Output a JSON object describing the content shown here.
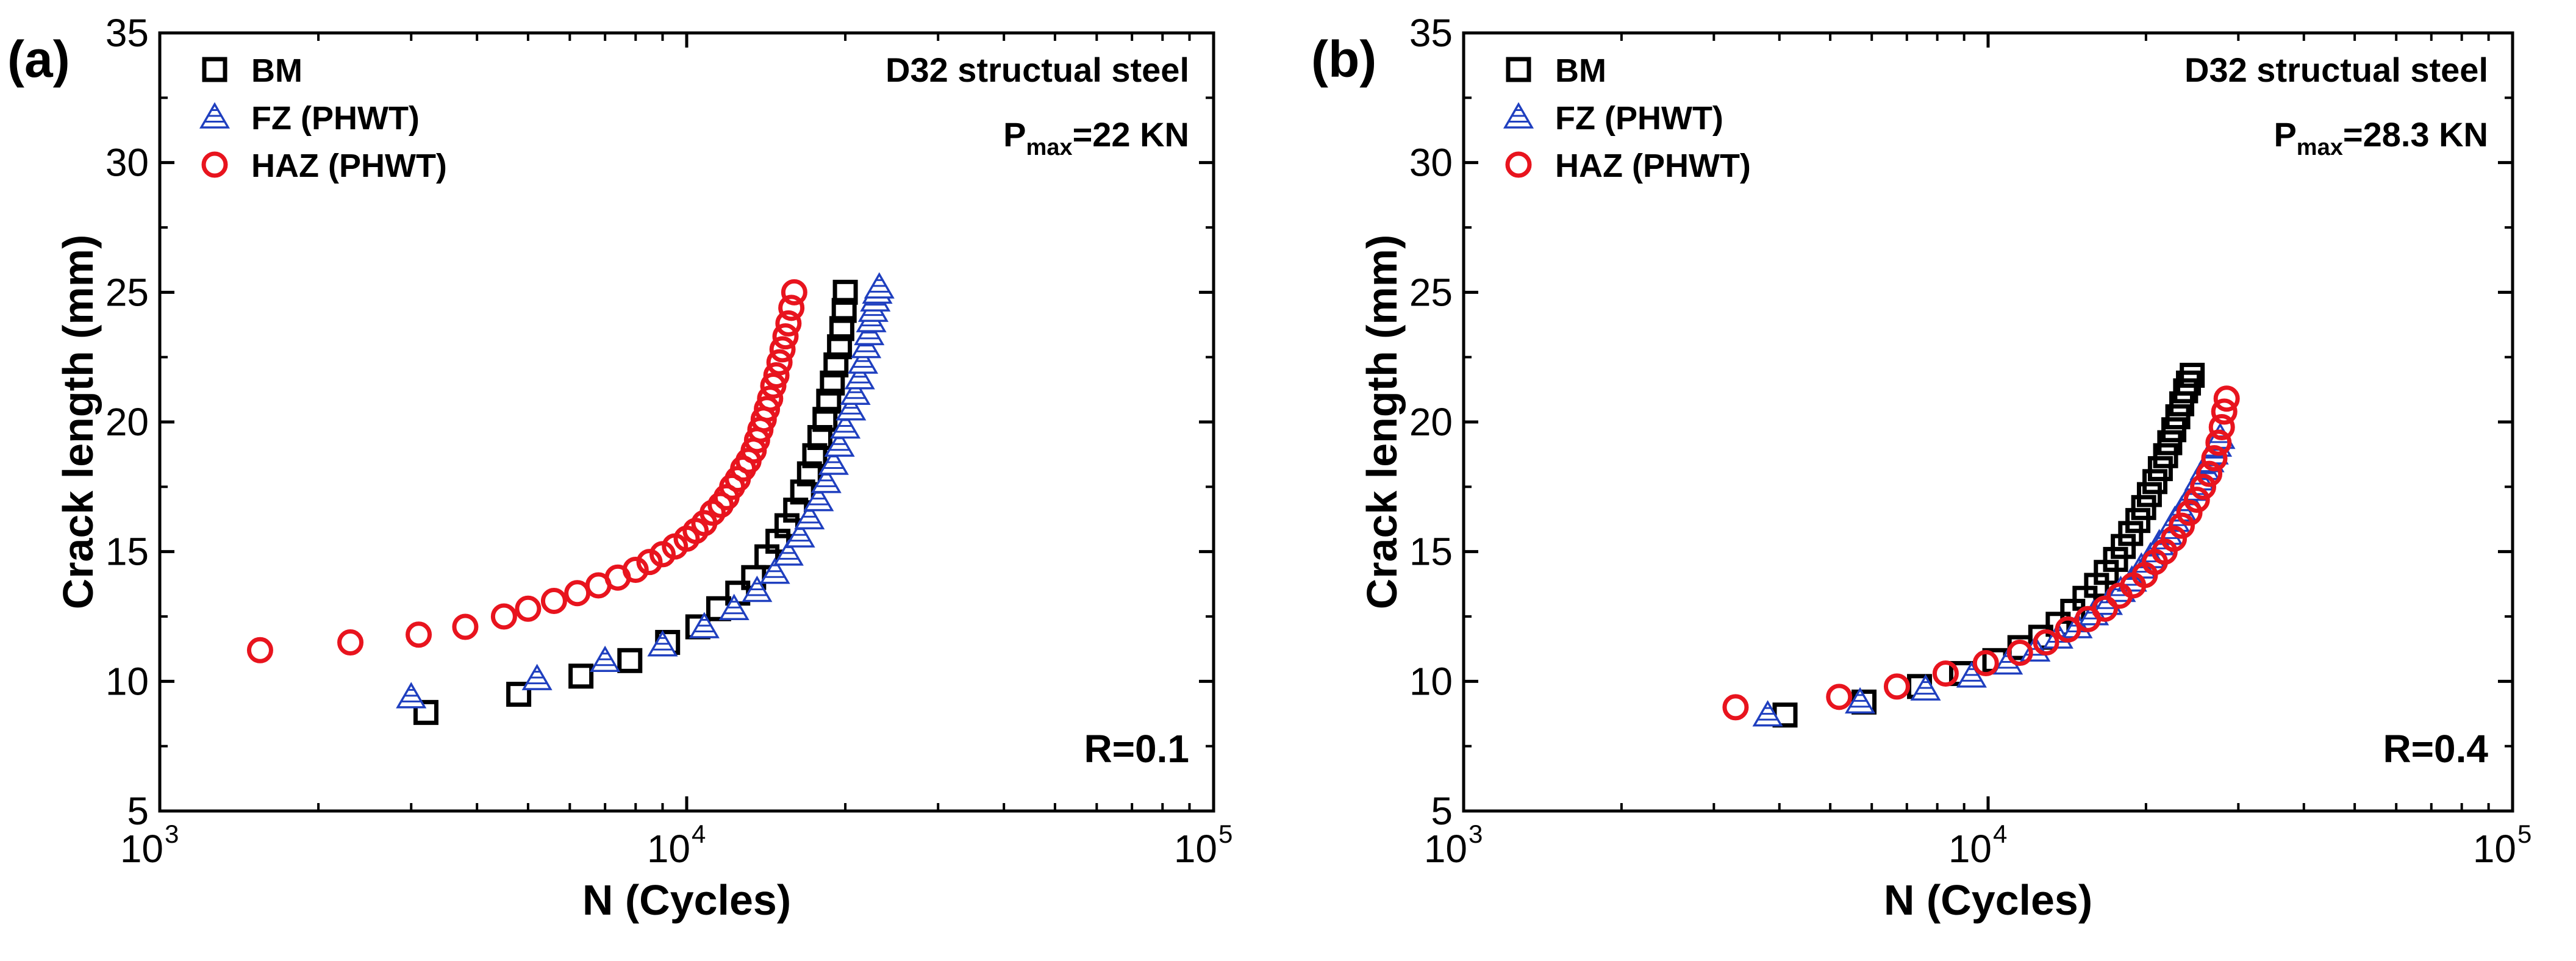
{
  "chart_data": [
    {
      "type": "scatter",
      "panel_label": "(a)",
      "xlabel": "N (Cycles)",
      "ylabel": "Crack length (mm)",
      "xscale": "log",
      "xlim": [
        1000,
        100000
      ],
      "ylim": [
        5,
        35
      ],
      "x_ticks": [
        {
          "base": "10",
          "exp": "3"
        },
        {
          "base": "10",
          "exp": "4"
        },
        {
          "base": "10",
          "exp": "5"
        }
      ],
      "y_ticks": [
        "5",
        "10",
        "15",
        "20",
        "25",
        "30",
        "35"
      ],
      "annotations": {
        "material": "D32 structual steel",
        "pmax_prefix": "P",
        "pmax_sub": "max",
        "pmax_value": "=22 KN",
        "ratio": "R=0.1"
      },
      "legend_position": "top-left",
      "series": [
        {
          "name": "BM",
          "marker": "square",
          "color": "#000000",
          "x": [
            3200,
            4800,
            6300,
            7800,
            9200,
            10500,
            11500,
            12500,
            13400,
            14200,
            14900,
            15500,
            16100,
            16600,
            17100,
            17500,
            17900,
            18300,
            18600,
            18900,
            19200,
            19500,
            19700,
            19900,
            20000
          ],
          "y": [
            8.8,
            9.5,
            10.2,
            10.8,
            11.5,
            12.1,
            12.8,
            13.4,
            14.0,
            14.8,
            15.4,
            16.0,
            16.6,
            17.3,
            18.0,
            18.7,
            19.4,
            20.1,
            20.8,
            21.5,
            22.2,
            22.9,
            23.6,
            24.3,
            25.0
          ]
        },
        {
          "name": "FZ (PHWT)",
          "marker": "triangle",
          "color": "#1f3fbf",
          "x": [
            3000,
            5200,
            7000,
            9000,
            10800,
            12300,
            13600,
            14700,
            15600,
            16400,
            17100,
            17800,
            18400,
            19000,
            19500,
            20000,
            20500,
            20900,
            21300,
            21600,
            21900,
            22200,
            22400,
            22600,
            22800,
            23000,
            23200
          ],
          "y": [
            9.4,
            10.1,
            10.8,
            11.4,
            12.1,
            12.8,
            13.5,
            14.2,
            14.9,
            15.6,
            16.3,
            17.0,
            17.7,
            18.4,
            19.1,
            19.8,
            20.5,
            21.1,
            21.7,
            22.3,
            22.9,
            23.4,
            23.9,
            24.3,
            24.7,
            25.0,
            25.2
          ]
        },
        {
          "name": "HAZ (PHWT)",
          "marker": "circle",
          "color": "#e8141e",
          "x": [
            1550,
            2300,
            3100,
            3800,
            4500,
            5000,
            5600,
            6200,
            6800,
            7400,
            8000,
            8500,
            9000,
            9500,
            10000,
            10400,
            10800,
            11200,
            11600,
            11900,
            12200,
            12500,
            12800,
            13100,
            13400,
            13600,
            13800,
            14000,
            14200,
            14400,
            14600,
            14800,
            15000,
            15200,
            15400,
            15600,
            15800,
            16000
          ],
          "y": [
            11.2,
            11.5,
            11.8,
            12.1,
            12.5,
            12.8,
            13.1,
            13.4,
            13.7,
            14.0,
            14.3,
            14.6,
            14.9,
            15.2,
            15.5,
            15.8,
            16.1,
            16.5,
            16.8,
            17.1,
            17.5,
            17.8,
            18.2,
            18.5,
            18.9,
            19.3,
            19.7,
            20.1,
            20.5,
            20.9,
            21.4,
            21.8,
            22.3,
            22.8,
            23.3,
            23.8,
            24.4,
            25.0
          ]
        }
      ]
    },
    {
      "type": "scatter",
      "panel_label": "(b)",
      "xlabel": "N (Cycles)",
      "ylabel": "Crack length (mm)",
      "xscale": "log",
      "xlim": [
        1000,
        100000
      ],
      "ylim": [
        5,
        35
      ],
      "x_ticks": [
        {
          "base": "10",
          "exp": "3"
        },
        {
          "base": "10",
          "exp": "4"
        },
        {
          "base": "10",
          "exp": "5"
        }
      ],
      "y_ticks": [
        "5",
        "10",
        "15",
        "20",
        "25",
        "30",
        "35"
      ],
      "annotations": {
        "material": "D32 structual steel",
        "pmax_prefix": "P",
        "pmax_sub": "max",
        "pmax_value": "=28.3 KN",
        "ratio": "R=0.4"
      },
      "legend_position": "top-left",
      "series": [
        {
          "name": "BM",
          "marker": "square",
          "color": "#000000",
          "x": [
            4100,
            5800,
            7400,
            8900,
            10300,
            11500,
            12600,
            13600,
            14500,
            15300,
            16100,
            16800,
            17500,
            18100,
            18700,
            19300,
            19800,
            20300,
            20800,
            21300,
            21800,
            22200,
            22600,
            23000,
            23400,
            23800,
            24100,
            24500
          ],
          "y": [
            8.7,
            9.2,
            9.8,
            10.3,
            10.8,
            11.3,
            11.7,
            12.2,
            12.7,
            13.2,
            13.7,
            14.2,
            14.7,
            15.2,
            15.7,
            16.2,
            16.7,
            17.2,
            17.7,
            18.2,
            18.7,
            19.2,
            19.7,
            20.2,
            20.7,
            21.2,
            21.5,
            21.8
          ]
        },
        {
          "name": "FZ (PHWT)",
          "marker": "triangle",
          "color": "#1f3fbf",
          "x": [
            3800,
            5700,
            7600,
            9300,
            10900,
            12300,
            13600,
            14800,
            15900,
            16900,
            17900,
            18800,
            19600,
            20400,
            21200,
            22000,
            22700,
            23400,
            24100,
            24700,
            25300,
            25900,
            26400,
            26900,
            27300,
            27700
          ],
          "y": [
            8.7,
            9.2,
            9.7,
            10.2,
            10.7,
            11.2,
            11.7,
            12.1,
            12.6,
            13.0,
            13.5,
            13.9,
            14.4,
            14.8,
            15.3,
            15.7,
            16.2,
            16.6,
            17.0,
            17.4,
            17.8,
            18.2,
            18.5,
            18.8,
            19.1,
            19.4
          ]
        },
        {
          "name": "HAZ (PHWT)",
          "marker": "circle",
          "color": "#e8141e",
          "x": [
            3300,
            5200,
            6700,
            8300,
            9900,
            11500,
            12900,
            14200,
            15500,
            16700,
            17800,
            18900,
            19900,
            20800,
            21700,
            22600,
            23400,
            24200,
            25000,
            25700,
            26400,
            27000,
            27500,
            27900,
            28200,
            28500
          ],
          "y": [
            9.0,
            9.4,
            9.8,
            10.3,
            10.7,
            11.1,
            11.5,
            12.0,
            12.4,
            12.8,
            13.3,
            13.7,
            14.1,
            14.6,
            15.0,
            15.5,
            16.0,
            16.5,
            17.0,
            17.5,
            18.0,
            18.6,
            19.2,
            19.8,
            20.4,
            20.9
          ]
        }
      ]
    }
  ]
}
